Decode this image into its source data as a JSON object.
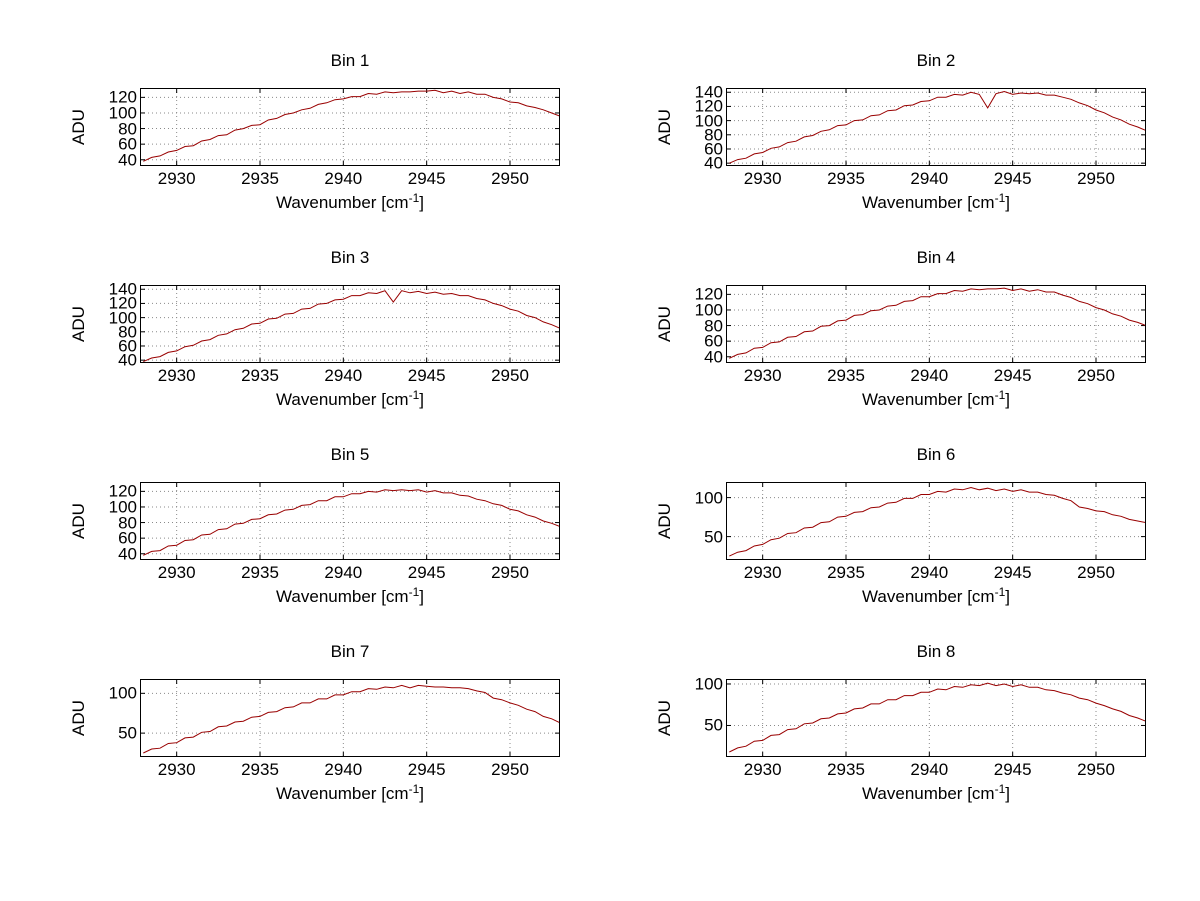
{
  "figure": {
    "background": "#ffffff",
    "line_color": "#990000",
    "grid_color": "#8a8a8a",
    "axis_color": "#000000"
  },
  "axes": {
    "ylabel": "ADU",
    "xlabel_prefix": "Wavenumber [cm",
    "xlabel_sup": "-1",
    "xlabel_suffix": "]",
    "xlim": [
      2927.8,
      2953.0
    ],
    "x_ticks": [
      2930,
      2935,
      2940,
      2945,
      2950
    ]
  },
  "chart_data": [
    {
      "type": "line",
      "title": "Bin 1",
      "x_start": 2928,
      "x_step": 0.5,
      "y_ticks": [
        40,
        60,
        80,
        100,
        120
      ],
      "ylim": [
        32,
        132
      ],
      "y_values": [
        38,
        43,
        45,
        50,
        52,
        57,
        58,
        64,
        66,
        71,
        72,
        78,
        80,
        84,
        85,
        91,
        93,
        98,
        100,
        104,
        106,
        111,
        113,
        117,
        118,
        121,
        121,
        125,
        124,
        127,
        126,
        127,
        127,
        128,
        128,
        129,
        126,
        128,
        125,
        127,
        124,
        124,
        120,
        118,
        114,
        113,
        109,
        107,
        104,
        100,
        96
      ]
    },
    {
      "type": "line",
      "title": "Bin 2",
      "x_start": 2928,
      "x_step": 0.5,
      "y_ticks": [
        40,
        60,
        80,
        100,
        120,
        140
      ],
      "ylim": [
        36,
        146
      ],
      "y_values": [
        40,
        45,
        47,
        53,
        55,
        61,
        63,
        69,
        71,
        77,
        79,
        85,
        87,
        93,
        94,
        100,
        101,
        107,
        108,
        114,
        115,
        121,
        122,
        127,
        128,
        133,
        133,
        137,
        136,
        140,
        137,
        118,
        138,
        141,
        137,
        139,
        138,
        139,
        136,
        136,
        133,
        130,
        125,
        121,
        115,
        111,
        105,
        101,
        95,
        91,
        86
      ]
    },
    {
      "type": "line",
      "title": "Bin 3",
      "x_start": 2928,
      "x_step": 0.5,
      "y_ticks": [
        40,
        60,
        80,
        100,
        120,
        140
      ],
      "ylim": [
        36,
        146
      ],
      "y_values": [
        38,
        43,
        45,
        51,
        53,
        59,
        61,
        67,
        69,
        75,
        77,
        83,
        85,
        91,
        92,
        98,
        99,
        105,
        106,
        112,
        113,
        119,
        120,
        125,
        126,
        131,
        131,
        135,
        134,
        138,
        122,
        138,
        135,
        137,
        134,
        136,
        133,
        134,
        131,
        131,
        127,
        125,
        120,
        117,
        112,
        109,
        103,
        100,
        94,
        90,
        85
      ]
    },
    {
      "type": "line",
      "title": "Bin 4",
      "x_start": 2928,
      "x_step": 0.5,
      "y_ticks": [
        40,
        60,
        80,
        100,
        120
      ],
      "ylim": [
        32,
        132
      ],
      "y_values": [
        38,
        43,
        45,
        51,
        52,
        58,
        59,
        65,
        66,
        72,
        73,
        79,
        80,
        86,
        87,
        93,
        94,
        99,
        100,
        105,
        106,
        111,
        112,
        117,
        117,
        121,
        121,
        125,
        124,
        127,
        126,
        127,
        127,
        128,
        125,
        127,
        124,
        126,
        123,
        123,
        119,
        116,
        111,
        108,
        103,
        100,
        95,
        92,
        87,
        84,
        80
      ]
    },
    {
      "type": "line",
      "title": "Bin 5",
      "x_start": 2928,
      "x_step": 0.5,
      "y_ticks": [
        40,
        60,
        80,
        100,
        120
      ],
      "ylim": [
        32,
        132
      ],
      "y_values": [
        38,
        43,
        44,
        50,
        51,
        57,
        58,
        64,
        65,
        71,
        72,
        78,
        79,
        84,
        85,
        90,
        91,
        96,
        97,
        102,
        103,
        108,
        108,
        113,
        113,
        117,
        117,
        120,
        119,
        122,
        121,
        122,
        121,
        122,
        119,
        121,
        118,
        118,
        115,
        114,
        110,
        108,
        104,
        102,
        97,
        95,
        90,
        87,
        82,
        79,
        75
      ]
    },
    {
      "type": "line",
      "title": "Bin 6",
      "x_start": 2928,
      "x_step": 0.5,
      "y_ticks": [
        50,
        100
      ],
      "ylim": [
        20,
        120
      ],
      "y_values": [
        25,
        30,
        32,
        38,
        40,
        46,
        48,
        54,
        55,
        61,
        62,
        68,
        69,
        75,
        76,
        81,
        82,
        87,
        88,
        93,
        94,
        99,
        99,
        104,
        104,
        108,
        107,
        111,
        110,
        113,
        110,
        112,
        109,
        111,
        108,
        110,
        107,
        107,
        104,
        103,
        99,
        96,
        88,
        86,
        83,
        82,
        78,
        76,
        72,
        70,
        68
      ]
    },
    {
      "type": "line",
      "title": "Bin 7",
      "x_start": 2928,
      "x_step": 0.5,
      "y_ticks": [
        50,
        100
      ],
      "ylim": [
        20,
        118
      ],
      "y_values": [
        25,
        30,
        31,
        37,
        38,
        44,
        45,
        51,
        52,
        58,
        59,
        64,
        65,
        70,
        71,
        76,
        77,
        82,
        83,
        88,
        88,
        93,
        93,
        98,
        98,
        102,
        102,
        106,
        105,
        108,
        107,
        110,
        107,
        110,
        109,
        108,
        108,
        107,
        107,
        106,
        103,
        101,
        94,
        92,
        88,
        85,
        80,
        77,
        71,
        68,
        63
      ]
    },
    {
      "type": "line",
      "title": "Bin 8",
      "x_start": 2928,
      "x_step": 0.5,
      "y_ticks": [
        50,
        100
      ],
      "ylim": [
        12,
        106
      ],
      "y_values": [
        18,
        23,
        25,
        31,
        32,
        38,
        39,
        45,
        46,
        52,
        53,
        58,
        59,
        64,
        65,
        70,
        71,
        76,
        76,
        81,
        81,
        86,
        86,
        90,
        90,
        94,
        93,
        97,
        96,
        99,
        98,
        101,
        98,
        100,
        97,
        99,
        96,
        96,
        93,
        92,
        89,
        87,
        83,
        81,
        77,
        74,
        70,
        67,
        62,
        59,
        55
      ]
    }
  ]
}
